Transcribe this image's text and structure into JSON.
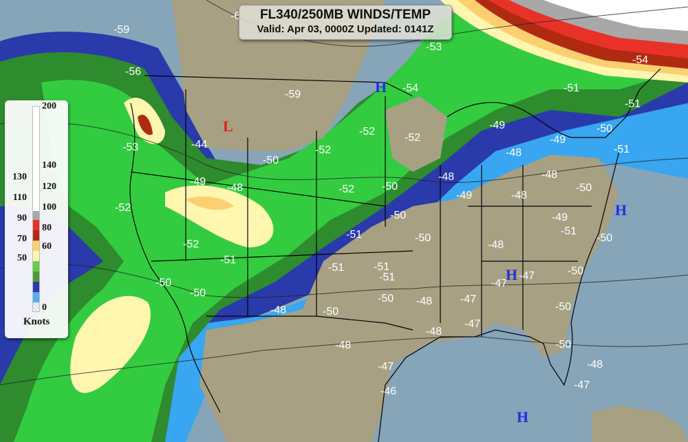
{
  "title": {
    "line1": "FL340/250MB WINDS/TEMP",
    "line2": "Valid: Apr 03, 0000Z Updated: 0141Z"
  },
  "legend": {
    "unit": "Knots",
    "right_ticks": [
      "200",
      "140",
      "120",
      "100",
      "80",
      "60",
      "0"
    ],
    "left_ticks": [
      "130",
      "110",
      "90",
      "70",
      "50"
    ],
    "scale": [
      {
        "range": "140-200",
        "color": "#ffffff"
      },
      {
        "range": "130-140",
        "color": "#a8a8a8"
      },
      {
        "range": "120-130",
        "color": "#e83228"
      },
      {
        "range": "110-120",
        "color": "#b02a12"
      },
      {
        "range": "100-110",
        "color": "#fcd070"
      },
      {
        "range": "90-100",
        "color": "#fff6b0"
      },
      {
        "range": "80-90",
        "color": "#66cc44"
      },
      {
        "range": "70-80",
        "color": "#4a9a3a"
      },
      {
        "range": "60-70",
        "color": "#2a3aaa"
      },
      {
        "range": "50-60",
        "color": "#38a6f0"
      },
      {
        "range": "0-50",
        "color": "checkered"
      }
    ]
  },
  "colors": {
    "land": "#a7a083",
    "ocean": "#86a5b8"
  },
  "temperatures": [
    "-6",
    "-59",
    "-56",
    "-53",
    "-52",
    "-52",
    "-50",
    "-50",
    "-51",
    "-49",
    "-48",
    "-44",
    "-59",
    "-50",
    "-52",
    "-52",
    "-52",
    "-52",
    "-54",
    "-53",
    "-50",
    "-50",
    "-51",
    "-50",
    "-51",
    "-51",
    "-51",
    "-50",
    "-48",
    "-50",
    "-48",
    "-48",
    "-49",
    "-48",
    "-49",
    "-49",
    "-50",
    "-51",
    "-51",
    "-51",
    "-54",
    "-48",
    "-48",
    "-50",
    "-49",
    "-51",
    "-50",
    "-48",
    "-47",
    "-47",
    "-50",
    "-47",
    "-47",
    "-48",
    "-50",
    "-50",
    "-48",
    "-47",
    "-46",
    "-48",
    "-47"
  ],
  "pressure_centers": [
    {
      "label": "L",
      "type": "low",
      "color": "#e02020"
    },
    {
      "label": "H",
      "type": "high",
      "color": "#2030e0"
    },
    {
      "label": "H",
      "type": "high",
      "color": "#2030e0"
    },
    {
      "label": "H",
      "type": "high",
      "color": "#2030e0"
    },
    {
      "label": "H",
      "type": "high",
      "color": "#2030e0"
    }
  ]
}
